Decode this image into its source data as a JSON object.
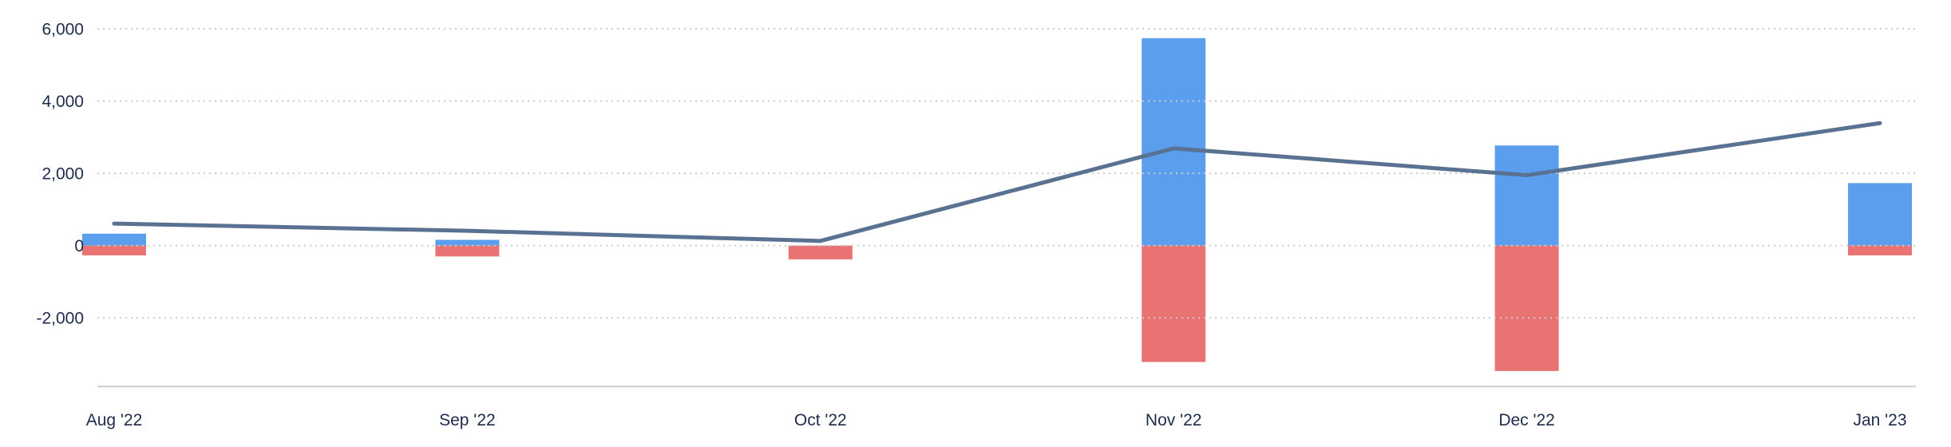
{
  "chart_data": {
    "type": "bar",
    "title": "",
    "xlabel": "",
    "ylabel": "",
    "categories": [
      "Aug '22",
      "Sep '22",
      "Oct '22",
      "Nov '22",
      "Dec '22",
      "Jan '23"
    ],
    "series": [
      {
        "name": "positive",
        "render": "bar",
        "stack": "total",
        "color": "#5B9EED",
        "values": [
          330,
          160,
          0,
          5740,
          2770,
          1730
        ]
      },
      {
        "name": "negative",
        "render": "bar",
        "stack": "total",
        "color": "#E97272",
        "values": [
          -270,
          -300,
          -380,
          -3220,
          -3470,
          -270
        ]
      },
      {
        "name": "line",
        "render": "line",
        "color": "#5A7292",
        "values": [
          610,
          410,
          130,
          2690,
          1950,
          3390
        ]
      }
    ],
    "y_axis": {
      "tick_values": [
        6000,
        4000,
        2000,
        0,
        -2000
      ],
      "tick_labels": [
        "6,000",
        "4,000",
        "2,000",
        "0",
        "-2,000"
      ],
      "grid": "dotted"
    },
    "x_axis": {
      "tick_labels": [
        "Aug '22",
        "Sep '22",
        "Oct '22",
        "Nov '22",
        "Dec '22",
        "Jan '23"
      ]
    },
    "ylim": [
      -3900,
      6800
    ],
    "legend": "none",
    "colors": {
      "bar_positive": "#5B9EED",
      "bar_negative": "#E97272",
      "trend_line": "#5A7292",
      "gridline": "#CBCBCB",
      "axis_line": "#CCCCCC",
      "label_text": "#1E2B4D",
      "background": "#FFFFFF"
    }
  }
}
